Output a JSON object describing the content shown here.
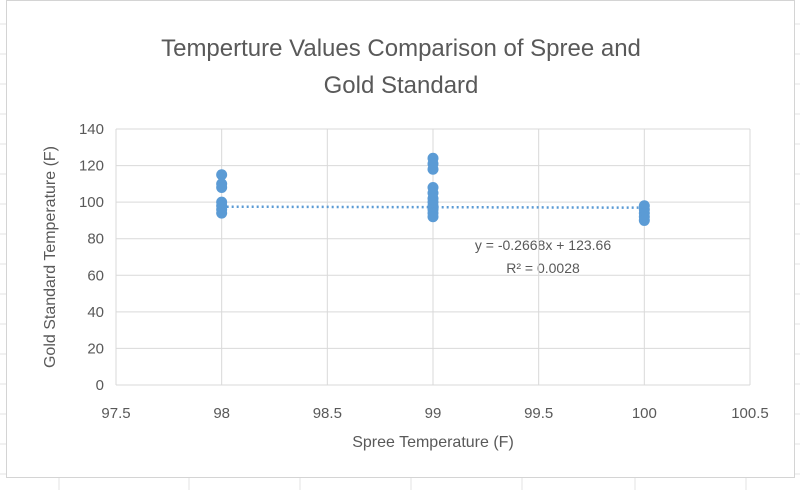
{
  "chart_data": {
    "type": "scatter",
    "title": "Temperture Values Comparison of Spree and Gold Standard",
    "title_lines": [
      "Temperture Values Comparison of Spree and",
      "Gold Standard"
    ],
    "xlabel": "Spree Temperature (F)",
    "ylabel": "Gold Standard Temperature (F)",
    "xlim": [
      97.5,
      100.5
    ],
    "ylim": [
      0,
      140
    ],
    "xticks": [
      "97.5",
      "98",
      "98.5",
      "99",
      "99.5",
      "100",
      "100.5"
    ],
    "yticks": [
      "0",
      "20",
      "40",
      "60",
      "80",
      "100",
      "120",
      "140"
    ],
    "grid": true,
    "marker_color": "#5b9bd5",
    "points": {
      "x": [
        98,
        98,
        98,
        98,
        98,
        98,
        98,
        99,
        99,
        99,
        99,
        99,
        99,
        99,
        99,
        99,
        99,
        99,
        100,
        100,
        100,
        100,
        100
      ],
      "y": [
        115,
        110,
        108,
        100,
        98,
        96,
        94,
        124,
        121,
        118,
        108,
        105,
        102,
        100,
        98,
        96,
        94,
        92,
        98,
        96,
        94,
        92,
        90
      ]
    },
    "trendline": {
      "type": "linear",
      "slope": -0.2668,
      "intercept": 123.66,
      "equation": "y = -0.2668x + 123.66",
      "r2_label": "R² = 0.0028"
    }
  }
}
